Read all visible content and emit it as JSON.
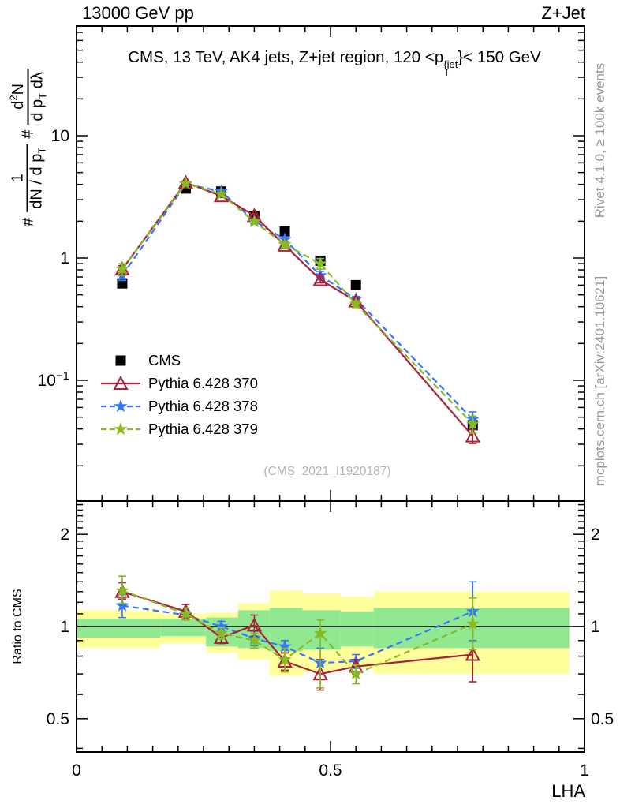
{
  "header": {
    "left_title": "13000 GeV pp",
    "right_title": "Z+Jet"
  },
  "plot_title": {
    "prefix": "CMS, 13 TeV, AK4 jets, Z+jet region, 120 <p",
    "sup": "{jet",
    "sub": "T",
    "suffix": "}< 150 GeV"
  },
  "y_axis_label": {
    "hash1": "#",
    "frac1_num": "1",
    "frac1_den": "dN / d p",
    "frac1_den_sub": "T",
    "hash2": "#",
    "frac2_num_base": "d",
    "frac2_num_sup": "2",
    "frac2_num_rest": "N",
    "frac2_den_a": "d p",
    "frac2_den_sub": "T",
    "frac2_den_b": " dλ"
  },
  "right_credits": {
    "top": "Rivet 4.1.0, ≥ 100k events",
    "bottom": "mcplots.cern.ch [arXiv:2401.10621]"
  },
  "watermark": "(CMS_2021_I1920187)",
  "ratio_label": "Ratio to CMS",
  "x_axis_label": "LHA",
  "colors": {
    "cms": "#000000",
    "pythia370": "#aa2239",
    "pythia378": "#3377ff",
    "pythia379": "#88bb22",
    "band_yellow": "#ffff9c",
    "band_green": "#90e890",
    "credits_gray": "#999999",
    "watermark_gray": "#b5b5b5"
  },
  "chart_data": [
    {
      "id": "main-panel",
      "type": "line",
      "yscale": "log",
      "title": "CMS, 13 TeV, AK4 jets, Z+jet region, 120 < pT{jet} < 150 GeV",
      "xlabel": "LHA",
      "ylabel": "# 1/(dN/dpT) # d2N/(dpT dlambda)",
      "xlim": [
        0,
        1
      ],
      "ylim": [
        0.0103,
        79
      ],
      "xticks": [
        {
          "v": 0,
          "label": "0"
        },
        {
          "v": 0.5,
          "label": "0.5"
        },
        {
          "v": 1,
          "label": "1"
        }
      ],
      "yticks": [
        {
          "v": 10,
          "label": "10"
        },
        {
          "v": 1,
          "label": "1"
        },
        {
          "v": 0.1,
          "label": "10^−1"
        }
      ],
      "x": [
        0.09,
        0.215,
        0.285,
        0.35,
        0.41,
        0.48,
        0.55,
        0.78
      ],
      "series": [
        {
          "name": "CMS",
          "marker": "square",
          "line": "none",
          "color_key": "cms",
          "values": [
            0.62,
            3.7,
            3.5,
            2.2,
            1.65,
            0.95,
            0.6,
            0.043
          ]
        },
        {
          "name": "Pythia 6.428 370",
          "marker": "triangle",
          "line": "solid",
          "color_key": "pythia370",
          "values": [
            0.81,
            4.14,
            3.22,
            2.22,
            1.27,
            0.665,
            0.444,
            0.035
          ],
          "yerr_frac": [
            0.07,
            0.03,
            0.03,
            0.04,
            0.05,
            0.06,
            0.05,
            0.13
          ]
        },
        {
          "name": "Pythia 6.428 378",
          "marker": "star",
          "line": "dashed",
          "color_key": "pythia378",
          "values": [
            0.72,
            4.03,
            3.5,
            2.01,
            1.42,
            0.72,
            0.462,
            0.048
          ],
          "yerr_frac": [
            0.09,
            0.03,
            0.03,
            0.04,
            0.05,
            0.08,
            0.05,
            0.15
          ]
        },
        {
          "name": "Pythia 6.428 379",
          "marker": "star",
          "line": "dashed",
          "color_key": "pythia379",
          "values": [
            0.81,
            4.07,
            3.33,
            1.98,
            1.29,
            0.9,
            0.42,
            0.044
          ],
          "yerr_frac": [
            0.11,
            0.03,
            0.03,
            0.04,
            0.06,
            0.1,
            0.06,
            0.16
          ]
        }
      ]
    },
    {
      "id": "ratio-panel",
      "type": "line",
      "yscale": "log",
      "ylabel": "Ratio to CMS",
      "xlim": [
        0,
        1
      ],
      "ylim": [
        0.39,
        2.57
      ],
      "reference_line": 1.0,
      "xticks": [
        {
          "v": 0,
          "label": "0"
        },
        {
          "v": 0.5,
          "label": "0.5"
        },
        {
          "v": 1,
          "label": "1"
        }
      ],
      "yticks": [
        {
          "v": 2,
          "label": "2"
        },
        {
          "v": 1,
          "label": "1"
        },
        {
          "v": 0.5,
          "label": "0.5"
        }
      ],
      "x": [
        0.09,
        0.215,
        0.285,
        0.35,
        0.41,
        0.48,
        0.55,
        0.78
      ],
      "band_edges": [
        0.0,
        0.165,
        0.255,
        0.318,
        0.38,
        0.445,
        0.52,
        0.585,
        0.97
      ],
      "band_yellow": [
        [
          0.85,
          1.13
        ],
        [
          0.88,
          1.1
        ],
        [
          0.82,
          1.11
        ],
        [
          0.78,
          1.19
        ],
        [
          0.69,
          1.31
        ],
        [
          0.71,
          1.28
        ],
        [
          0.73,
          1.25
        ],
        [
          0.7,
          1.3
        ]
      ],
      "band_green": [
        [
          0.92,
          1.06
        ],
        [
          0.93,
          1.06
        ],
        [
          0.86,
          1.07
        ],
        [
          0.85,
          1.13
        ],
        [
          0.83,
          1.15
        ],
        [
          0.84,
          1.13
        ],
        [
          0.86,
          1.12
        ],
        [
          0.85,
          1.15
        ]
      ],
      "series": [
        {
          "name": "Pythia 6.428 370",
          "marker": "triangle",
          "line": "solid",
          "color_key": "pythia370",
          "ratio": [
            1.3,
            1.12,
            0.92,
            1.01,
            0.77,
            0.7,
            0.74,
            0.81
          ],
          "err": [
            [
              0.07,
              0.09
            ],
            [
              0.06,
              0.06
            ],
            [
              0.04,
              0.04
            ],
            [
              0.08,
              0.08
            ],
            [
              0.05,
              0.05
            ],
            [
              0.08,
              0.08
            ],
            [
              0.04,
              0.04
            ],
            [
              0.15,
              0.19
            ]
          ]
        },
        {
          "name": "Pythia 6.428 378",
          "marker": "star",
          "line": "dashed",
          "color_key": "pythia378",
          "ratio": [
            1.17,
            1.09,
            1.0,
            0.915,
            0.86,
            0.76,
            0.77,
            1.12
          ],
          "err": [
            [
              0.1,
              0.1
            ],
            [
              0.04,
              0.04
            ],
            [
              0.04,
              0.04
            ],
            [
              0.05,
              0.05
            ],
            [
              0.04,
              0.04
            ],
            [
              0.09,
              0.09
            ],
            [
              0.04,
              0.04
            ],
            [
              0.22,
              0.28
            ]
          ]
        },
        {
          "name": "Pythia 6.428 379",
          "marker": "star",
          "line": "dashed",
          "color_key": "pythia379",
          "ratio": [
            1.31,
            1.1,
            0.95,
            0.9,
            0.78,
            0.95,
            0.7,
            1.02
          ],
          "err": [
            [
              0.12,
              0.15
            ],
            [
              0.05,
              0.05
            ],
            [
              0.04,
              0.04
            ],
            [
              0.05,
              0.05
            ],
            [
              0.07,
              0.07
            ],
            [
              0.32,
              0.1
            ],
            [
              0.05,
              0.05
            ],
            [
              0.18,
              0.22
            ]
          ]
        }
      ]
    }
  ]
}
